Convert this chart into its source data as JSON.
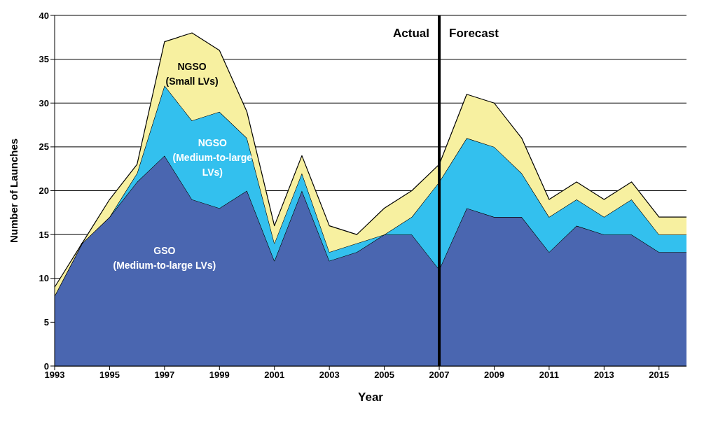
{
  "chart_data": {
    "type": "area",
    "stacked": true,
    "xlabel": "Year",
    "ylabel": "Number of Launches",
    "x": [
      1993,
      1994,
      1995,
      1996,
      1997,
      1998,
      1999,
      2000,
      2001,
      2002,
      2003,
      2004,
      2005,
      2006,
      2007,
      2008,
      2009,
      2010,
      2011,
      2012,
      2013,
      2014,
      2015,
      2016
    ],
    "series": [
      {
        "name": "GSO (Medium-to-large LVs)",
        "color": "#4a66b0",
        "values": [
          8,
          14,
          17,
          21,
          24,
          19,
          18,
          20,
          12,
          20,
          12,
          13,
          15,
          15,
          11,
          18,
          17,
          17,
          13,
          16,
          15,
          15,
          13,
          13
        ]
      },
      {
        "name": "NGSO (Medium-to-large LVs)",
        "color": "#33c0ee",
        "values": [
          0,
          0,
          0,
          1,
          8,
          9,
          11,
          6,
          2,
          2,
          1,
          1,
          0,
          2,
          10,
          8,
          8,
          5,
          4,
          3,
          2,
          4,
          2,
          2
        ]
      },
      {
        "name": "NGSO (Small LVs)",
        "color": "#f7f0a0",
        "values": [
          1,
          0,
          2,
          1,
          5,
          10,
          7,
          3,
          2,
          2,
          3,
          1,
          3,
          3,
          2,
          5,
          5,
          4,
          2,
          2,
          2,
          2,
          2,
          2
        ]
      }
    ],
    "xlim": [
      1993,
      2016
    ],
    "xticks": [
      1993,
      1995,
      1997,
      1999,
      2001,
      2003,
      2005,
      2007,
      2009,
      2011,
      2013,
      2015
    ],
    "ylim": [
      0,
      40
    ],
    "yticks": [
      0,
      5,
      10,
      15,
      20,
      25,
      30,
      35,
      40
    ],
    "grid": "y",
    "legend": false,
    "ref_lines": [
      {
        "axis": "x",
        "value": 2007,
        "color": "#000000"
      }
    ],
    "annotations": [
      {
        "text": "Actual",
        "x": 2007,
        "y": 38
      },
      {
        "text": "Forecast",
        "x": 2007,
        "y": 38
      }
    ]
  }
}
